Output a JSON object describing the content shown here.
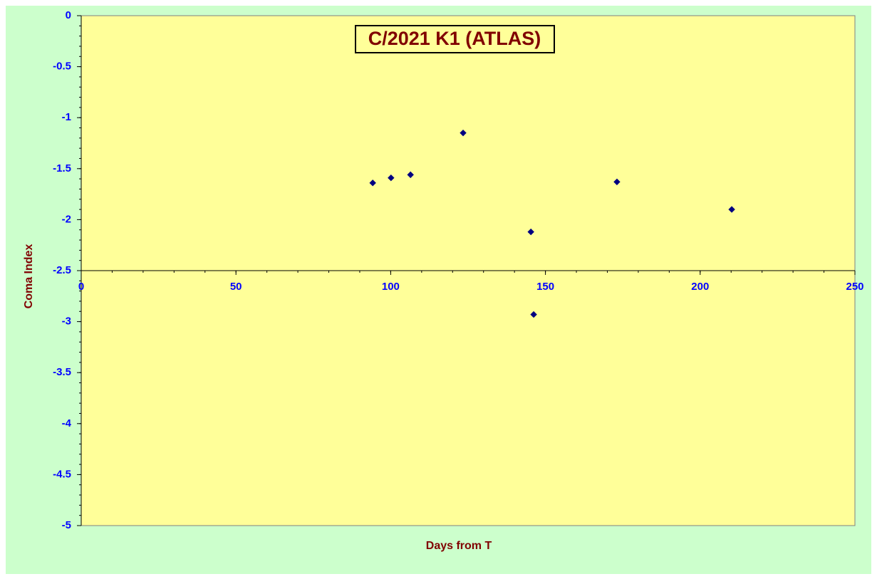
{
  "chart_data": {
    "type": "scatter",
    "title": "C/2021 K1 (ATLAS)",
    "x_label": "Days from  T",
    "y_label": "Coma Index",
    "series": [
      {
        "name": "Coma Index",
        "color": "#000080",
        "x": [
          94.2,
          100.1,
          106.4,
          123.4,
          145.3,
          146.2,
          173.1,
          210.2
        ],
        "values": [
          -1.64,
          -1.59,
          -1.56,
          -1.15,
          -2.12,
          -2.93,
          -1.63,
          -1.9
        ]
      }
    ],
    "xlim": [
      0,
      250
    ],
    "xticks": [
      0,
      50,
      100,
      150,
      200,
      250
    ],
    "ylim": [
      -5,
      0
    ],
    "yticks": [
      0,
      -0.5,
      -1,
      -1.5,
      -2,
      -2.5,
      -3,
      -3.5,
      -4,
      -4.5,
      -5
    ],
    "x_axis_at": -2.5,
    "grid": false
  }
}
